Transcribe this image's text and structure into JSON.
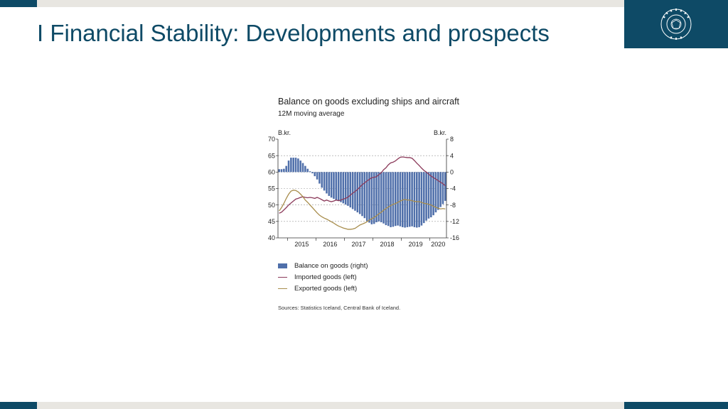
{
  "slide": {
    "title": "I Financial Stability: Developments and prospects",
    "logo_text": "SEÐLABANKI ÍSLANDS"
  },
  "colors": {
    "brand": "#0e4a66",
    "bar_fill": "#4f6faa",
    "imported_line": "#8b3a5a",
    "exported_line": "#a88d4c",
    "gray_band": "#e8e6e1"
  },
  "chart_data": {
    "type": "bar",
    "title": "Balance on goods excluding ships and aircraft",
    "subtitle": "12M moving average",
    "ylabel_left": "B.kr.",
    "ylabel_right": "B.kr.",
    "ylim_left": [
      40,
      70
    ],
    "yticks_left": [
      "70",
      "65",
      "60",
      "55",
      "50",
      "45",
      "40"
    ],
    "ylim_right": [
      -16,
      8
    ],
    "yticks_right": [
      "8",
      "4",
      "0",
      "-4",
      "-8",
      "-12",
      "-16"
    ],
    "x_tick_labels": [
      "2015",
      "2016",
      "2017",
      "2018",
      "2019",
      "2020"
    ],
    "grid": "dashed horizontal",
    "x_start": "2014-09",
    "x_end": "2020-05",
    "series": [
      {
        "name": "Balance on goods (right)",
        "kind": "bar",
        "axis": "right",
        "values": [
          0.7,
          0.7,
          0.8,
          1.5,
          2.8,
          3.5,
          3.5,
          3.5,
          3.3,
          2.8,
          2.2,
          1.5,
          0.8,
          0.2,
          -0.3,
          -1.0,
          -1.8,
          -2.8,
          -3.8,
          -4.5,
          -5.2,
          -5.8,
          -6.2,
          -6.5,
          -6.8,
          -7.0,
          -7.3,
          -7.6,
          -7.9,
          -8.2,
          -8.6,
          -9.0,
          -9.4,
          -9.8,
          -10.2,
          -10.7,
          -11.2,
          -11.9,
          -12.3,
          -12.7,
          -12.6,
          -12.2,
          -12.0,
          -12.2,
          -12.5,
          -12.9,
          -13.1,
          -13.4,
          -13.3,
          -13.1,
          -13.0,
          -13.2,
          -13.4,
          -13.5,
          -13.4,
          -13.3,
          -13.2,
          -13.4,
          -13.5,
          -13.4,
          -13.0,
          -12.4,
          -11.8,
          -11.3,
          -11.0,
          -10.5,
          -9.8,
          -9.2,
          -8.5,
          -7.8,
          -7.0
        ]
      },
      {
        "name": "Imported goods (left)",
        "kind": "line",
        "axis": "left",
        "values": [
          47.5,
          47.8,
          48.5,
          49.2,
          50.0,
          50.6,
          51.2,
          51.8,
          52.0,
          52.3,
          52.5,
          52.3,
          52.2,
          52.3,
          52.2,
          52.0,
          52.3,
          52.0,
          51.6,
          51.2,
          51.5,
          51.2,
          51.0,
          51.2,
          51.5,
          51.3,
          51.5,
          51.8,
          52.0,
          52.4,
          53.0,
          53.6,
          54.1,
          54.7,
          55.4,
          56.2,
          56.7,
          57.3,
          57.8,
          58.3,
          58.4,
          58.6,
          59.2,
          59.8,
          60.7,
          61.3,
          62.2,
          62.8,
          63.0,
          63.4,
          64.0,
          64.5,
          64.6,
          64.5,
          64.4,
          64.4,
          64.2,
          63.5,
          62.7,
          62.0,
          61.2,
          60.5,
          60.0,
          59.4,
          58.8,
          58.3,
          57.9,
          57.4,
          56.9,
          56.5,
          55.8
        ]
      },
      {
        "name": "Exported goods (left)",
        "kind": "line",
        "axis": "left",
        "values": [
          48.2,
          49.2,
          50.5,
          52.0,
          53.3,
          54.2,
          54.5,
          54.4,
          54.0,
          53.3,
          52.5,
          51.5,
          50.8,
          50.0,
          49.2,
          48.4,
          47.6,
          46.9,
          46.4,
          46.0,
          45.7,
          45.3,
          44.9,
          44.5,
          44.0,
          43.6,
          43.3,
          43.0,
          42.8,
          42.6,
          42.6,
          42.7,
          42.9,
          43.4,
          43.9,
          44.2,
          44.5,
          44.9,
          45.4,
          45.8,
          46.2,
          46.7,
          47.3,
          47.8,
          48.4,
          48.9,
          49.4,
          49.8,
          50.2,
          50.4,
          50.8,
          51.2,
          51.5,
          51.7,
          51.5,
          51.5,
          51.3,
          51.1,
          51.0,
          51.0,
          50.8,
          50.5,
          50.4,
          50.2,
          50.0,
          49.6,
          49.3,
          49.0,
          48.8,
          48.9,
          48.8
        ]
      }
    ],
    "legend": [
      {
        "label": "Balance on goods (right)",
        "kind": "bar"
      },
      {
        "label": "Imported goods (left)",
        "kind": "line"
      },
      {
        "label": "Exported goods (left)",
        "kind": "line"
      }
    ],
    "source": "Sources: Statistics Iceland, Central Bank of Iceland."
  }
}
